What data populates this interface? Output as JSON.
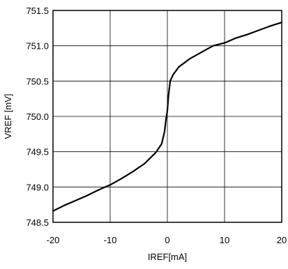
{
  "chart_data": {
    "type": "line",
    "title": "",
    "xlabel": "IREF[mA]",
    "ylabel": "VREF [mV]",
    "xlim": [
      -20,
      20
    ],
    "ylim": [
      748.5,
      751.5
    ],
    "x_ticks": [
      -20,
      -10,
      0,
      10,
      20
    ],
    "x_tick_labels": [
      "-20",
      "-10",
      "0",
      "10",
      "20"
    ],
    "y_ticks": [
      748.5,
      749.0,
      749.5,
      750.0,
      750.5,
      751.0,
      751.5
    ],
    "y_tick_labels": [
      "748.5",
      "749.0",
      "749.5",
      "750.0",
      "750.5",
      "751.0",
      "751.5"
    ],
    "grid": true,
    "legend": "none",
    "line_color": "#000000",
    "series": [
      {
        "x": [
          -20,
          -18,
          -16,
          -14,
          -12,
          -10,
          -8,
          -6,
          -4,
          -2,
          -1,
          -0.5,
          -0.2,
          0,
          0.2,
          0.5,
          1,
          2,
          4,
          6,
          8,
          10,
          12,
          14,
          16,
          18,
          20
        ],
        "y": [
          748.66,
          748.74,
          748.81,
          748.88,
          748.96,
          749.03,
          749.12,
          749.22,
          749.33,
          749.49,
          749.61,
          749.78,
          749.98,
          750.08,
          750.3,
          750.5,
          750.59,
          750.7,
          750.82,
          750.91,
          751.0,
          751.04,
          751.11,
          751.16,
          751.22,
          751.28,
          751.33
        ]
      }
    ]
  }
}
